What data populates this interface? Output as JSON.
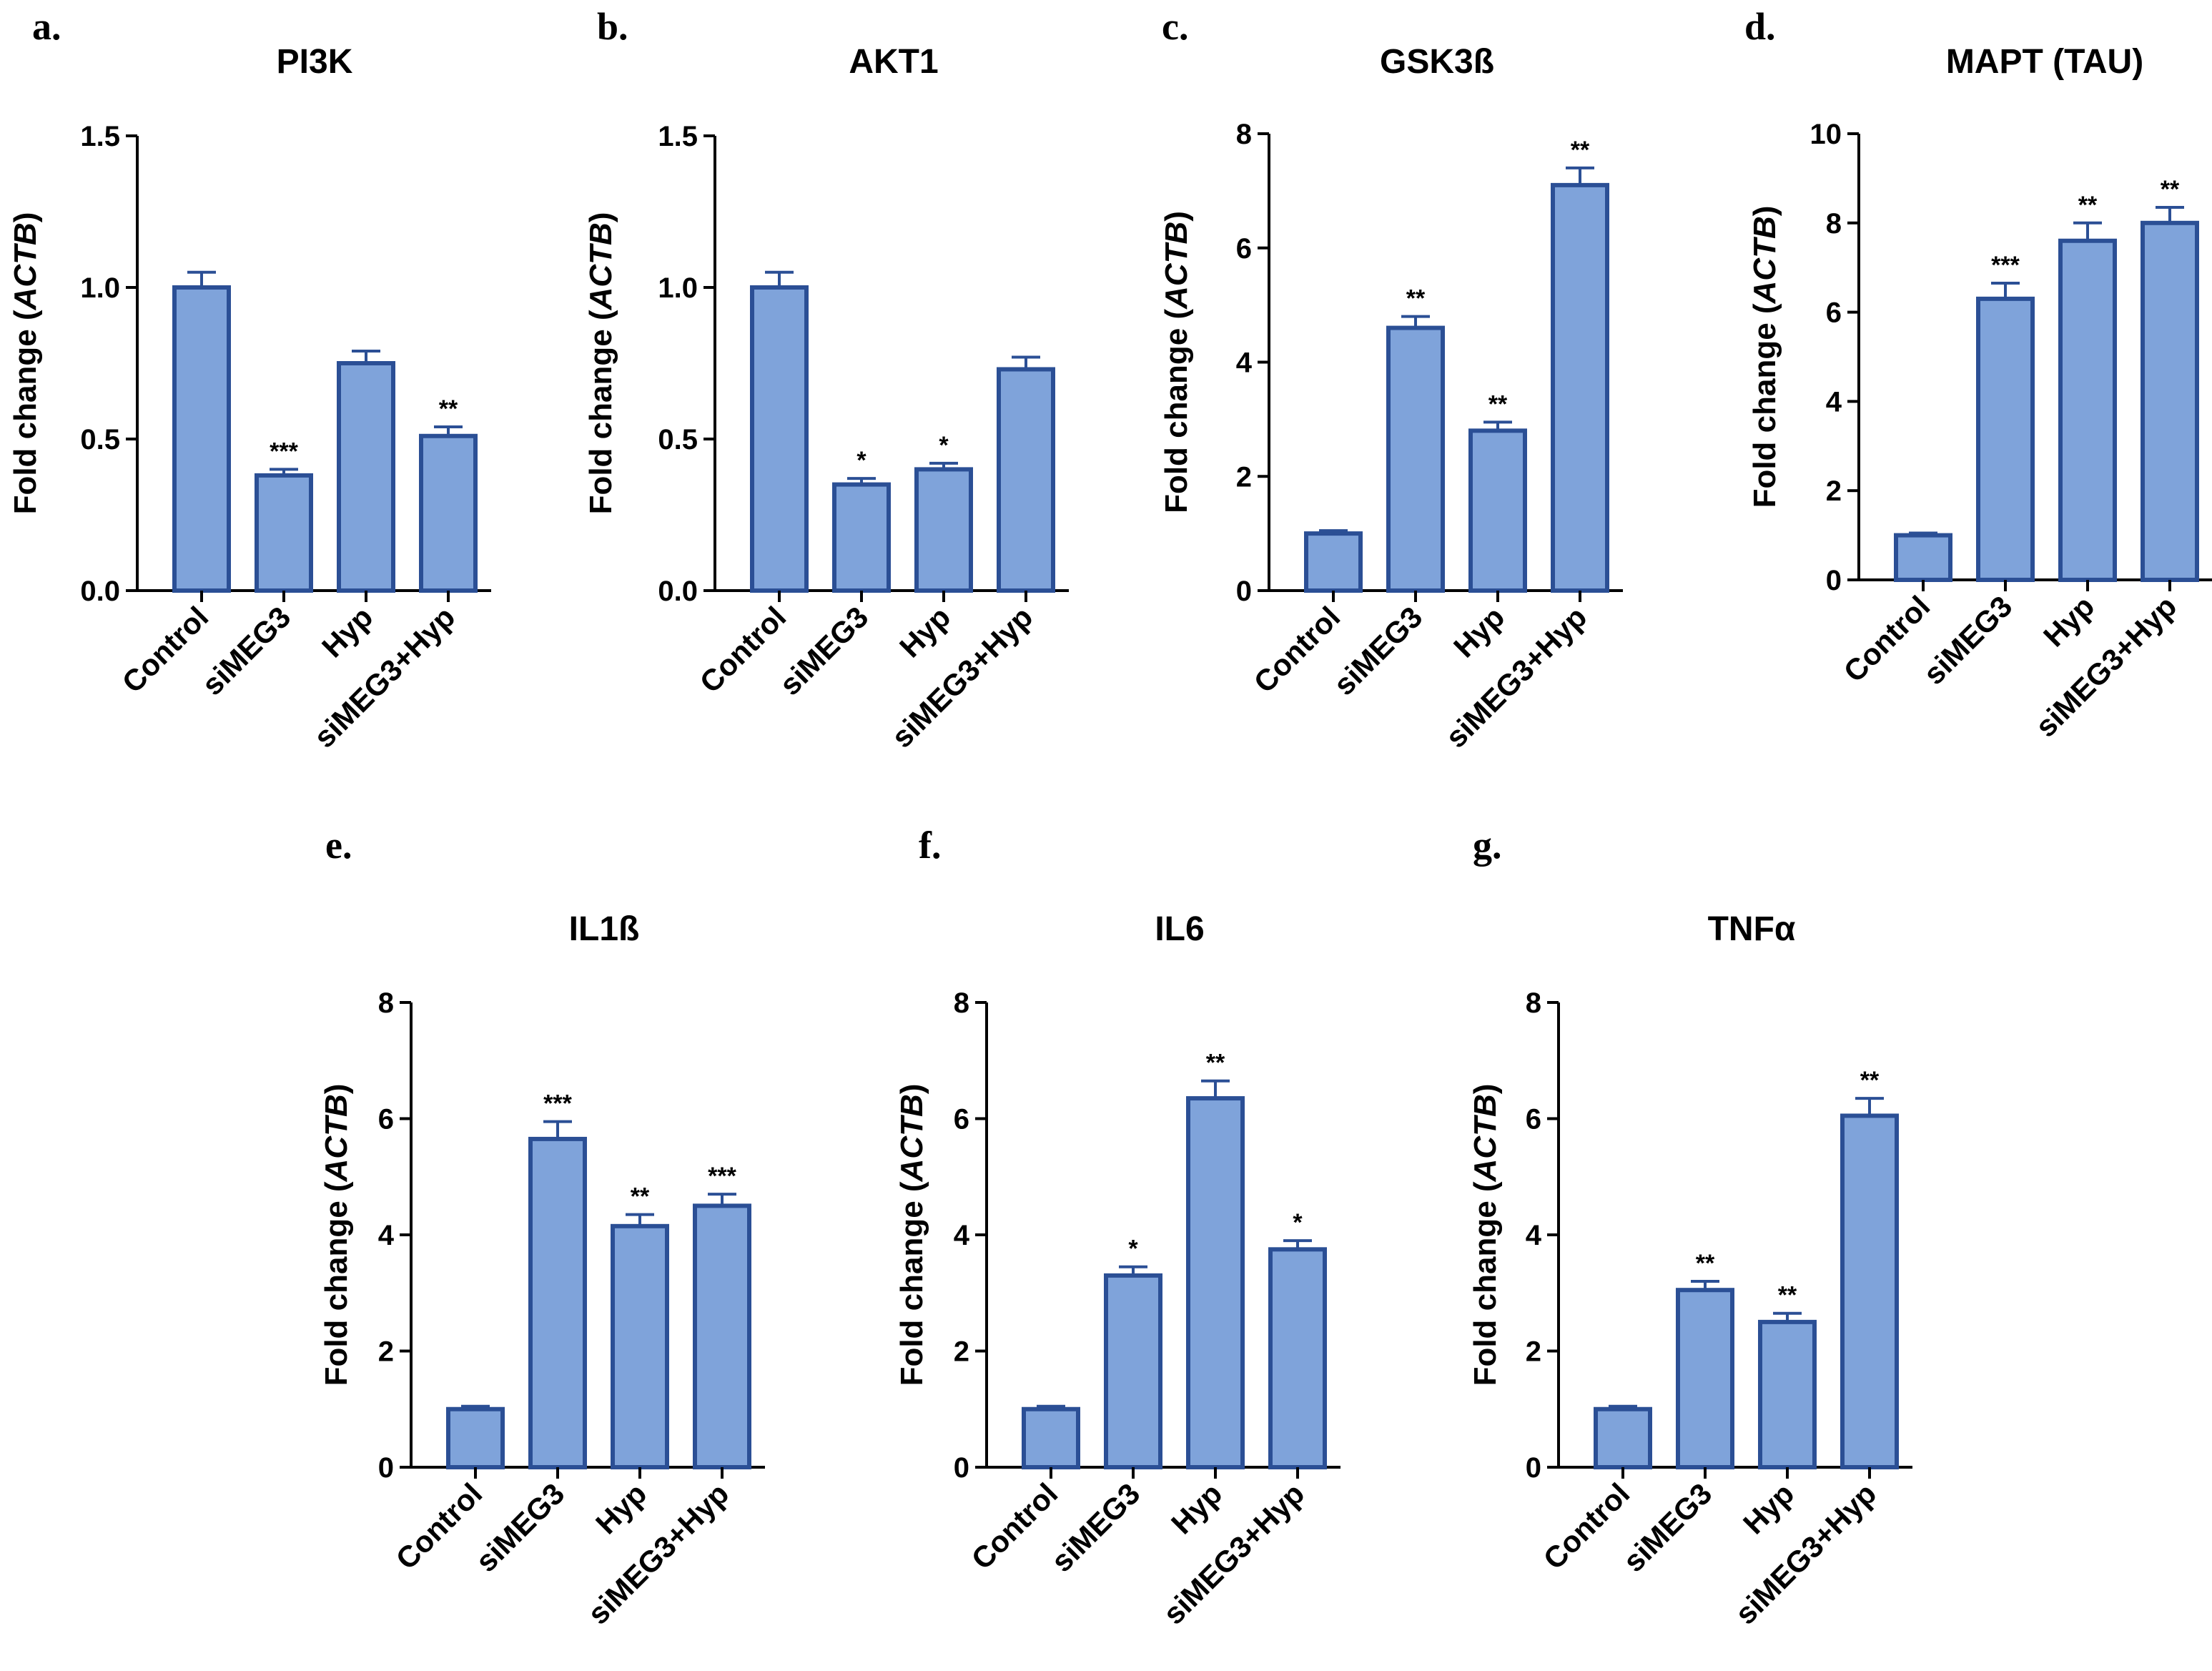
{
  "figure": {
    "categories": [
      "Control",
      "siMEG3",
      "Hyp",
      "siMEG3+Hyp"
    ],
    "ylabel_prefix": "Fold change (",
    "ylabel_italic": "ACTB",
    "ylabel_suffix": ")",
    "bar_fill": "#7fa3da",
    "bar_stroke": "#2b4f95",
    "axis_color": "#000000"
  },
  "chart_data": [
    {
      "type": "bar",
      "panel": "a.",
      "title": "PI3K",
      "categories": [
        "Control",
        "siMEG3",
        "Hyp",
        "siMEG3+Hyp"
      ],
      "values": [
        1.0,
        0.38,
        0.75,
        0.51
      ],
      "errors": [
        0.05,
        0.02,
        0.04,
        0.03
      ],
      "significance": [
        "",
        "***",
        "",
        "**"
      ],
      "ylim": [
        0,
        1.5
      ],
      "yticks": [
        "0.0",
        "0.5",
        "1.0",
        "1.5"
      ],
      "ylabel": "Fold change (ACTB)"
    },
    {
      "type": "bar",
      "panel": "b.",
      "title": "AKT1",
      "categories": [
        "Control",
        "siMEG3",
        "Hyp",
        "siMEG3+Hyp"
      ],
      "values": [
        1.0,
        0.35,
        0.4,
        0.73
      ],
      "errors": [
        0.05,
        0.02,
        0.02,
        0.04
      ],
      "significance": [
        "",
        "*",
        "*",
        ""
      ],
      "ylim": [
        0,
        1.5
      ],
      "yticks": [
        "0.0",
        "0.5",
        "1.0",
        "1.5"
      ],
      "ylabel": "Fold change (ACTB)"
    },
    {
      "type": "bar",
      "panel": "c.",
      "title": "GSK3ß",
      "categories": [
        "Control",
        "siMEG3",
        "Hyp",
        "siMEG3+Hyp"
      ],
      "values": [
        1.0,
        4.6,
        2.8,
        7.1
      ],
      "errors": [
        0.05,
        0.2,
        0.15,
        0.3
      ],
      "significance": [
        "",
        "**",
        "**",
        "**"
      ],
      "ylim": [
        0,
        8
      ],
      "yticks": [
        "0",
        "2",
        "4",
        "6",
        "8"
      ],
      "ylabel": "Fold change (ACTB)"
    },
    {
      "type": "bar",
      "panel": "d.",
      "title": "MAPT (TAU)",
      "categories": [
        "Control",
        "siMEG3",
        "Hyp",
        "siMEG3+Hyp"
      ],
      "values": [
        1.0,
        6.3,
        7.6,
        8.0
      ],
      "errors": [
        0.05,
        0.35,
        0.4,
        0.35
      ],
      "significance": [
        "",
        "***",
        "**",
        "**"
      ],
      "ylim": [
        0,
        10
      ],
      "yticks": [
        "0",
        "2",
        "4",
        "6",
        "8",
        "10"
      ],
      "ylabel": "Fold change (ACTB)"
    },
    {
      "type": "bar",
      "panel": "e.",
      "title": "IL1ß",
      "categories": [
        "Control",
        "siMEG3",
        "Hyp",
        "siMEG3+Hyp"
      ],
      "values": [
        1.0,
        5.65,
        4.15,
        4.5
      ],
      "errors": [
        0.05,
        0.3,
        0.2,
        0.2
      ],
      "significance": [
        "",
        "***",
        "**",
        "***"
      ],
      "ylim": [
        0,
        8
      ],
      "yticks": [
        "0",
        "2",
        "4",
        "6",
        "8"
      ],
      "ylabel": "Fold change (ACTB)"
    },
    {
      "type": "bar",
      "panel": "f.",
      "title": "IL6",
      "categories": [
        "Control",
        "siMEG3",
        "Hyp",
        "siMEG3+Hyp"
      ],
      "values": [
        1.0,
        3.3,
        6.35,
        3.75
      ],
      "errors": [
        0.05,
        0.15,
        0.3,
        0.15
      ],
      "significance": [
        "",
        "*",
        "**",
        "*"
      ],
      "ylim": [
        0,
        8
      ],
      "yticks": [
        "0",
        "2",
        "4",
        "6",
        "8"
      ],
      "ylabel": "Fold change (ACTB)"
    },
    {
      "type": "bar",
      "panel": "g.",
      "title": "TNFα",
      "categories": [
        "Control",
        "siMEG3",
        "Hyp",
        "siMEG3+Hyp"
      ],
      "values": [
        1.0,
        3.05,
        2.5,
        6.05
      ],
      "errors": [
        0.05,
        0.15,
        0.15,
        0.3
      ],
      "significance": [
        "",
        "**",
        "**",
        "**"
      ],
      "ylim": [
        0,
        8
      ],
      "yticks": [
        "0",
        "2",
        "4",
        "6",
        "8"
      ],
      "ylabel": "Fold change (ACTB)"
    }
  ]
}
